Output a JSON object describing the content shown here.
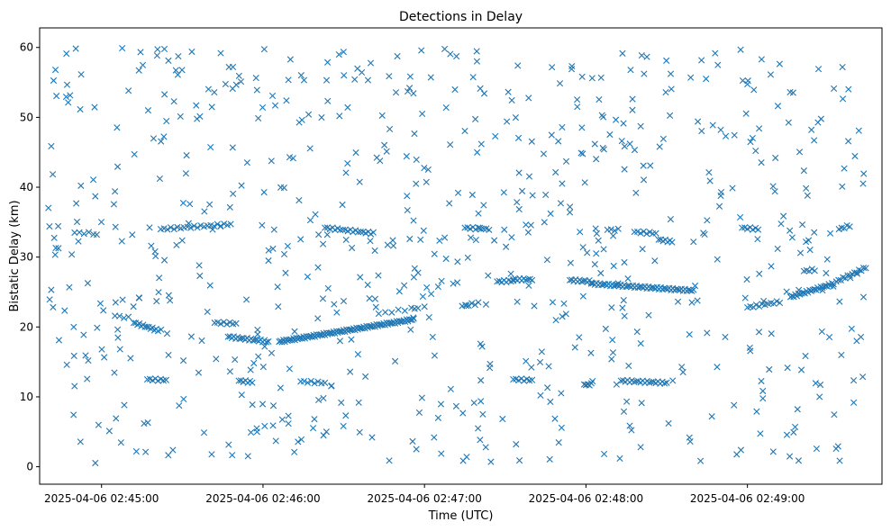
{
  "chart_data": {
    "type": "scatter",
    "title": "Detections in Delay",
    "xlabel": "Time (UTC)",
    "ylabel": "Bistatic Delay (km)",
    "x_unit": "seconds",
    "xlim": [
      "2025-04-06 02:44:37",
      "2025-04-06 02:49:50"
    ],
    "ylim": [
      -2.5,
      62.8
    ],
    "grid": false,
    "marker": "x",
    "marker_color": "#1f77b4",
    "x_ticks": [
      "2025-04-06 02:45:00",
      "2025-04-06 02:46:00",
      "2025-04-06 02:47:00",
      "2025-04-06 02:48:00",
      "2025-04-06 02:49:00"
    ],
    "y_ticks": [
      0,
      10,
      20,
      30,
      40,
      50,
      60
    ],
    "track_segments": [
      {
        "x": [
          "2025-04-06 02:44:43",
          "2025-04-06 02:44:44"
        ],
        "y": [
          31.3,
          31.2
        ],
        "count": 2
      },
      {
        "x": [
          "2025-04-06 02:44:50",
          "2025-04-06 02:44:57"
        ],
        "y": [
          33.5,
          33.4
        ],
        "count": 5
      },
      {
        "x": [
          "2025-04-06 02:45:05",
          "2025-04-06 02:45:10"
        ],
        "y": [
          21.6,
          21.3
        ],
        "count": 4
      },
      {
        "x": [
          "2025-04-06 02:45:12",
          "2025-04-06 02:45:21"
        ],
        "y": [
          20.6,
          19.5
        ],
        "count": 14
      },
      {
        "x": [
          "2025-04-06 02:45:17",
          "2025-04-06 02:45:24"
        ],
        "y": [
          12.5,
          12.4
        ],
        "count": 8
      },
      {
        "x": [
          "2025-04-06 02:45:22",
          "2025-04-06 02:45:48"
        ],
        "y": [
          34.0,
          34.7
        ],
        "count": 22
      },
      {
        "x": [
          "2025-04-06 02:45:42",
          "2025-04-06 02:45:50"
        ],
        "y": [
          20.6,
          20.5
        ],
        "count": 8
      },
      {
        "x": [
          "2025-04-06 02:45:47",
          "2025-04-06 02:46:02"
        ],
        "y": [
          18.6,
          17.9
        ],
        "count": 22
      },
      {
        "x": [
          "2025-04-06 02:45:51",
          "2025-04-06 02:45:56"
        ],
        "y": [
          12.3,
          12.1
        ],
        "count": 7
      },
      {
        "x": [
          "2025-04-06 02:46:06",
          "2025-04-06 02:46:56"
        ],
        "y": [
          17.9,
          21.1
        ],
        "count": 95
      },
      {
        "x": [
          "2025-04-06 02:46:14",
          "2025-04-06 02:46:23"
        ],
        "y": [
          12.2,
          12.0
        ],
        "count": 8
      },
      {
        "x": [
          "2025-04-06 02:46:23",
          "2025-04-06 02:46:41"
        ],
        "y": [
          34.2,
          33.4
        ],
        "count": 20
      },
      {
        "x": [
          "2025-04-06 02:46:43",
          "2025-04-06 02:47:00"
        ],
        "y": [
          21.9,
          22.9
        ],
        "count": 8
      },
      {
        "x": [
          "2025-04-06 02:47:14",
          "2025-04-06 02:47:20"
        ],
        "y": [
          23.0,
          23.4
        ],
        "count": 6
      },
      {
        "x": [
          "2025-04-06 02:47:15",
          "2025-04-06 02:47:24"
        ],
        "y": [
          34.2,
          34.0
        ],
        "count": 10
      },
      {
        "x": [
          "2025-04-06 02:47:27",
          "2025-04-06 02:47:33"
        ],
        "y": [
          26.5,
          26.6
        ],
        "count": 8
      },
      {
        "x": [
          "2025-04-06 02:47:33",
          "2025-04-06 02:47:40"
        ],
        "y": [
          26.8,
          26.8
        ],
        "count": 10
      },
      {
        "x": [
          "2025-04-06 02:47:33",
          "2025-04-06 02:47:40"
        ],
        "y": [
          12.5,
          12.4
        ],
        "count": 8
      },
      {
        "x": [
          "2025-04-06 02:47:54",
          "2025-04-06 02:48:02"
        ],
        "y": [
          26.7,
          26.5
        ],
        "count": 12
      },
      {
        "x": [
          "2025-04-06 02:48:02",
          "2025-04-06 02:48:40"
        ],
        "y": [
          26.2,
          25.2
        ],
        "count": 60
      },
      {
        "x": [
          "2025-04-06 02:48:00",
          "2025-04-06 02:48:02"
        ],
        "y": [
          11.7,
          11.8
        ],
        "count": 4
      },
      {
        "x": [
          "2025-04-06 02:48:08",
          "2025-04-06 02:48:12"
        ],
        "y": [
          33.9,
          33.9
        ],
        "count": 4
      },
      {
        "x": [
          "2025-04-06 02:48:13",
          "2025-04-06 02:48:30"
        ],
        "y": [
          12.3,
          12.0
        ],
        "count": 22
      },
      {
        "x": [
          "2025-04-06 02:48:18",
          "2025-04-06 02:48:26"
        ],
        "y": [
          33.6,
          33.4
        ],
        "count": 8
      },
      {
        "x": [
          "2025-04-06 02:48:27",
          "2025-04-06 02:48:32"
        ],
        "y": [
          32.5,
          32.2
        ],
        "count": 7
      },
      {
        "x": [
          "2025-04-06 02:48:58",
          "2025-04-06 02:49:04"
        ],
        "y": [
          34.2,
          34.0
        ],
        "count": 7
      },
      {
        "x": [
          "2025-04-06 02:49:00",
          "2025-04-06 02:49:12"
        ],
        "y": [
          22.8,
          23.6
        ],
        "count": 12
      },
      {
        "x": [
          "2025-04-06 02:49:16",
          "2025-04-06 02:49:32"
        ],
        "y": [
          24.3,
          26.2
        ],
        "count": 28
      },
      {
        "x": [
          "2025-04-06 02:49:21",
          "2025-04-06 02:49:25"
        ],
        "y": [
          28.0,
          28.2
        ],
        "count": 5
      },
      {
        "x": [
          "2025-04-06 02:49:33",
          "2025-04-06 02:49:44"
        ],
        "y": [
          26.5,
          28.5
        ],
        "count": 14
      },
      {
        "x": [
          "2025-04-06 02:49:34",
          "2025-04-06 02:49:38"
        ],
        "y": [
          34.0,
          34.5
        ],
        "count": 5
      }
    ],
    "scattered_points": {
      "x_range": [
        "2025-04-06 02:44:40",
        "2025-04-06 02:49:44"
      ],
      "y_range": [
        0.5,
        59.9
      ],
      "count": 700
    }
  }
}
